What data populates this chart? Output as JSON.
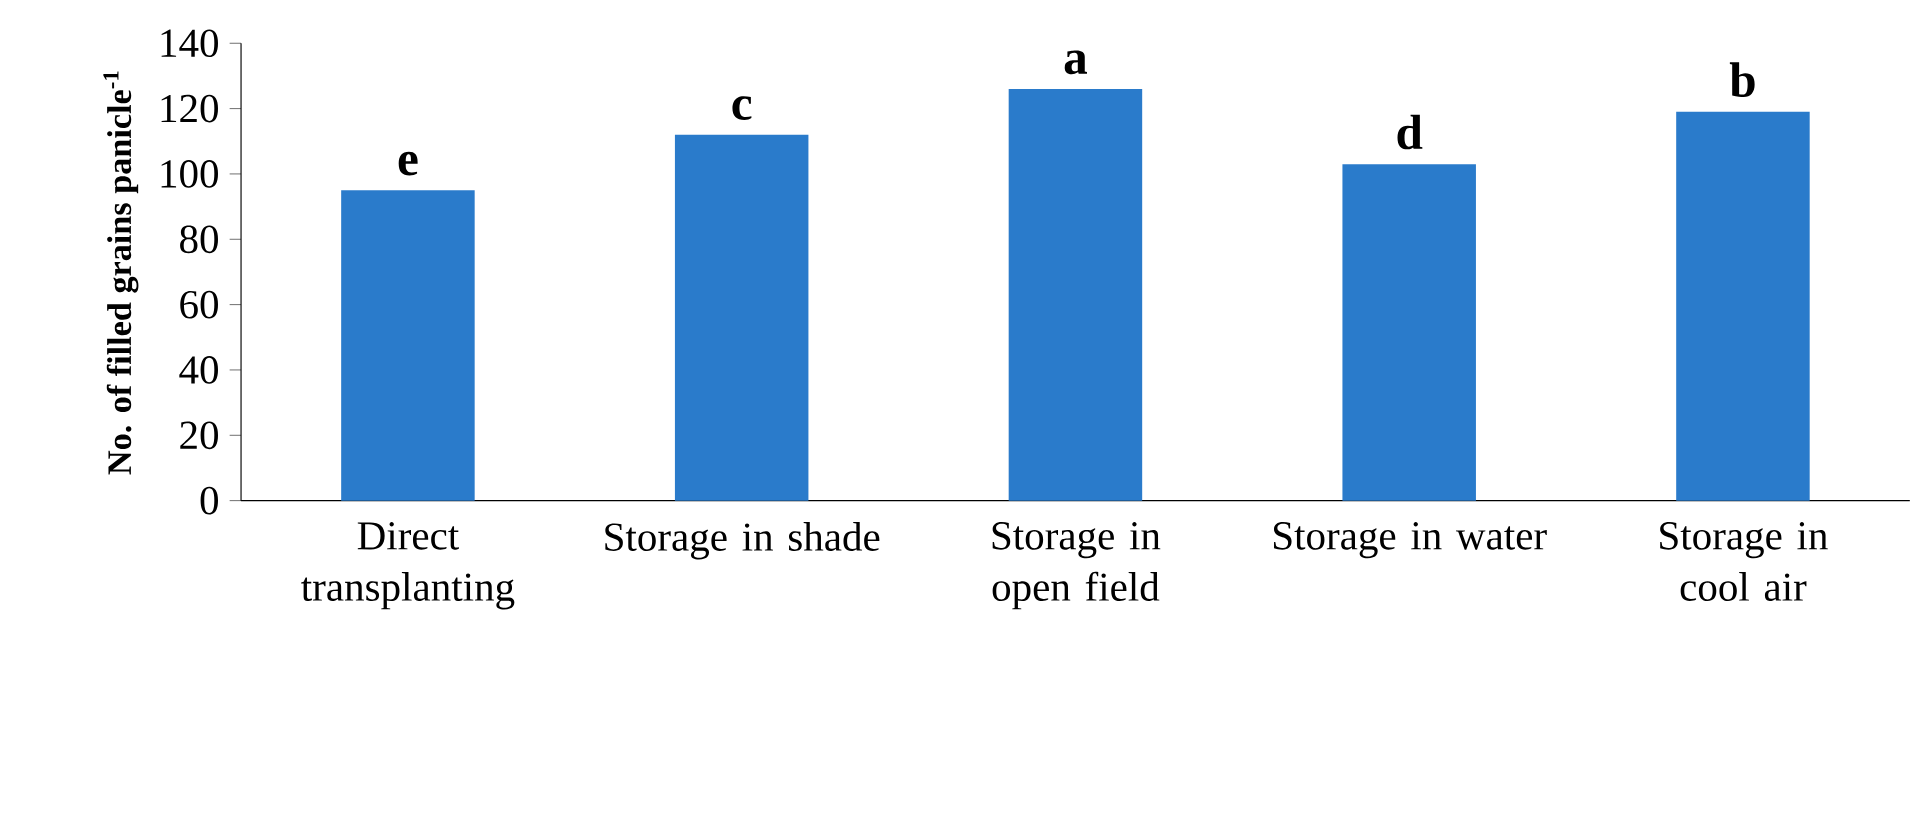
{
  "chart_data": {
    "type": "bar",
    "ylabel": "**No. of filled grains panicle$^{-1}$**",
    "categories": [
      "Direct transplanting",
      "Storage in shade",
      "Storage in open field",
      "Storage in water",
      "Storage in cool air"
    ],
    "values": [
      95,
      112,
      126,
      103,
      119
    ],
    "color": "#2a7bcb",
    "ylim": [
      0,
      140
    ],
    "yticks": [
      0,
      20,
      40,
      60,
      80,
      100,
      120,
      140
    ],
    "grid": false,
    "annotations": [
      {
        "text": "e",
        "x": "Direct transplanting",
        "y": 95
      },
      {
        "text": "c",
        "x": "Storage in shade",
        "y": 112
      },
      {
        "text": "a",
        "x": "Storage in open field",
        "y": 126
      },
      {
        "text": "d",
        "x": "Storage in water",
        "y": 103
      },
      {
        "text": "b",
        "x": "Storage in cool air",
        "y": 119
      }
    ]
  }
}
